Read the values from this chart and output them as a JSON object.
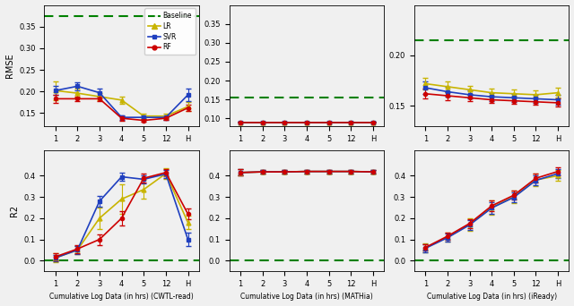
{
  "x_vals": [
    1,
    2,
    3,
    4,
    5,
    6,
    7
  ],
  "xlabels": [
    "1",
    "2",
    "3",
    "4",
    "5",
    "12",
    "H"
  ],
  "cwtl_rmse": {
    "baseline": 0.375,
    "LR": [
      0.202,
      0.196,
      0.188,
      0.18,
      0.143,
      0.143,
      0.165
    ],
    "LR_err": [
      0.022,
      0.01,
      0.008,
      0.008,
      0.006,
      0.006,
      0.01
    ],
    "SVR": [
      0.202,
      0.212,
      0.197,
      0.14,
      0.14,
      0.14,
      0.192
    ],
    "SVR_err": [
      0.01,
      0.01,
      0.01,
      0.005,
      0.005,
      0.005,
      0.015
    ],
    "RF": [
      0.183,
      0.183,
      0.183,
      0.138,
      0.133,
      0.138,
      0.162
    ],
    "RF_err": [
      0.01,
      0.005,
      0.005,
      0.005,
      0.003,
      0.003,
      0.008
    ],
    "ylim": [
      0.12,
      0.4
    ],
    "yticks": [
      0.15,
      0.2,
      0.25,
      0.3,
      0.35
    ]
  },
  "mathia_rmse": {
    "baseline": 0.155,
    "LR": [
      0.09,
      0.09,
      0.09,
      0.09,
      0.09,
      0.09,
      0.09
    ],
    "LR_err": [
      0.002,
      0.001,
      0.001,
      0.001,
      0.001,
      0.001,
      0.001
    ],
    "SVR": [
      0.09,
      0.09,
      0.09,
      0.09,
      0.09,
      0.09,
      0.09
    ],
    "SVR_err": [
      0.002,
      0.001,
      0.001,
      0.001,
      0.001,
      0.001,
      0.001
    ],
    "RF": [
      0.09,
      0.09,
      0.09,
      0.09,
      0.09,
      0.09,
      0.09
    ],
    "RF_err": [
      0.002,
      0.001,
      0.001,
      0.001,
      0.001,
      0.001,
      0.001
    ],
    "ylim": [
      0.08,
      0.4
    ],
    "yticks": [
      0.1,
      0.15,
      0.2,
      0.25,
      0.3,
      0.35
    ]
  },
  "iready_rmse": {
    "baseline": 0.215,
    "LR": [
      0.172,
      0.169,
      0.166,
      0.163,
      0.162,
      0.161,
      0.163
    ],
    "LR_err": [
      0.006,
      0.005,
      0.004,
      0.004,
      0.004,
      0.004,
      0.005
    ],
    "SVR": [
      0.168,
      0.164,
      0.161,
      0.159,
      0.158,
      0.157,
      0.156
    ],
    "SVR_err": [
      0.006,
      0.005,
      0.004,
      0.004,
      0.004,
      0.004,
      0.005
    ],
    "RF": [
      0.162,
      0.16,
      0.158,
      0.156,
      0.155,
      0.154,
      0.153
    ],
    "RF_err": [
      0.005,
      0.004,
      0.003,
      0.003,
      0.003,
      0.003,
      0.004
    ],
    "ylim": [
      0.13,
      0.25
    ],
    "yticks": [
      0.15,
      0.2
    ]
  },
  "cwtl_r2": {
    "baseline": 0.0,
    "LR": [
      0.013,
      0.05,
      0.2,
      0.29,
      0.335,
      0.41,
      0.18
    ],
    "LR_err": [
      0.02,
      0.02,
      0.05,
      0.07,
      0.045,
      0.025,
      0.03
    ],
    "SVR": [
      0.013,
      0.05,
      0.28,
      0.395,
      0.383,
      0.408,
      0.1
    ],
    "SVR_err": [
      0.015,
      0.02,
      0.025,
      0.02,
      0.02,
      0.02,
      0.03
    ],
    "RF": [
      0.018,
      0.055,
      0.1,
      0.2,
      0.388,
      0.415,
      0.22
    ],
    "RF_err": [
      0.015,
      0.018,
      0.025,
      0.035,
      0.02,
      0.018,
      0.025
    ],
    "ylim": [
      -0.05,
      0.52
    ],
    "yticks": [
      0.0,
      0.1,
      0.2,
      0.3,
      0.4
    ]
  },
  "mathia_r2": {
    "baseline": 0.0,
    "LR": [
      0.415,
      0.418,
      0.418,
      0.42,
      0.42,
      0.42,
      0.418
    ],
    "LR_err": [
      0.015,
      0.01,
      0.008,
      0.008,
      0.008,
      0.008,
      0.008
    ],
    "SVR": [
      0.415,
      0.418,
      0.418,
      0.42,
      0.42,
      0.42,
      0.418
    ],
    "SVR_err": [
      0.015,
      0.01,
      0.008,
      0.008,
      0.008,
      0.008,
      0.008
    ],
    "RF": [
      0.415,
      0.418,
      0.418,
      0.42,
      0.42,
      0.42,
      0.418
    ],
    "RF_err": [
      0.015,
      0.01,
      0.008,
      0.008,
      0.008,
      0.008,
      0.008
    ],
    "ylim": [
      -0.05,
      0.52
    ],
    "yticks": [
      0.0,
      0.1,
      0.2,
      0.3,
      0.4
    ]
  },
  "iready_r2": {
    "baseline": 0.0,
    "LR": [
      0.06,
      0.11,
      0.17,
      0.25,
      0.3,
      0.38,
      0.4
    ],
    "LR_err": [
      0.02,
      0.022,
      0.028,
      0.032,
      0.028,
      0.028,
      0.025
    ],
    "SVR": [
      0.058,
      0.108,
      0.168,
      0.248,
      0.298,
      0.378,
      0.41
    ],
    "SVR_err": [
      0.018,
      0.02,
      0.024,
      0.028,
      0.024,
      0.024,
      0.022
    ],
    "RF": [
      0.062,
      0.115,
      0.175,
      0.258,
      0.308,
      0.388,
      0.42
    ],
    "RF_err": [
      0.015,
      0.018,
      0.022,
      0.025,
      0.022,
      0.022,
      0.02
    ],
    "ylim": [
      -0.05,
      0.52
    ],
    "yticks": [
      0.0,
      0.1,
      0.2,
      0.3,
      0.4
    ]
  },
  "colors": {
    "baseline": "#008000",
    "LR": "#c8b400",
    "SVR": "#1f3fbf",
    "RF": "#cc0000"
  },
  "bg_color": "#f0f0f0",
  "xlabels_row": [
    "Cumulative Log Data (in hrs) (CWTL-read)",
    "Cumulative Log Data (in hrs) (MATHia)",
    "Cumulative Log Data (in hrs) (iReady)"
  ]
}
